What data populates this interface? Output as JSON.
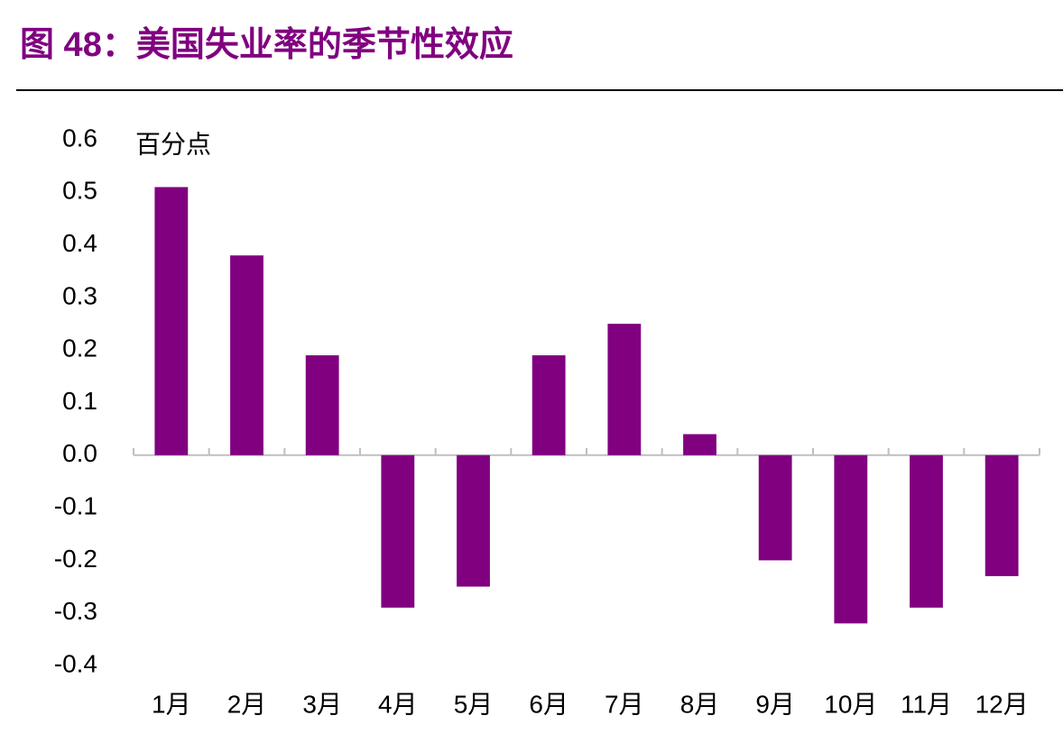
{
  "chart_data": {
    "type": "bar",
    "title": "图 48：美国失业率的季节性效应",
    "y_label": "百分点",
    "categories": [
      "1月",
      "2月",
      "3月",
      "4月",
      "5月",
      "6月",
      "7月",
      "8月",
      "9月",
      "10月",
      "11月",
      "12月"
    ],
    "values": [
      0.51,
      0.38,
      0.19,
      -0.29,
      -0.25,
      0.19,
      0.25,
      0.04,
      -0.2,
      -0.32,
      -0.29,
      -0.23
    ],
    "color": "#800080",
    "ylim": [
      -0.4,
      0.6
    ],
    "yticks": [
      0.6,
      0.5,
      0.4,
      0.3,
      0.2,
      0.1,
      {
        "value": 0,
        "label": "0.0"
      },
      -0.1,
      -0.2,
      -0.3,
      -0.4
    ],
    "grid": false
  }
}
